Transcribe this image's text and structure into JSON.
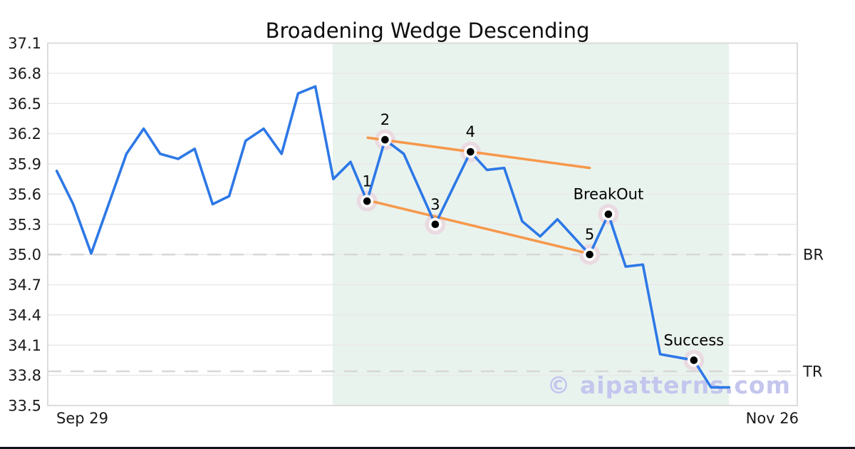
{
  "chart_data": {
    "type": "line",
    "title": "Broadening Wedge Descending",
    "x_ticks": [
      "Sep 29",
      "Nov 26"
    ],
    "y_ticks": [
      37.1,
      36.8,
      36.5,
      36.2,
      35.9,
      35.6,
      35.3,
      35.0,
      34.7,
      34.4,
      34.1,
      33.8,
      33.5
    ],
    "ylim": [
      33.5,
      37.1
    ],
    "grid": true,
    "watermark": "© aipatterns.com",
    "colors": {
      "price_line": "#2d78e6",
      "trendline": "#f6984b",
      "pattern_zone": "#e9f3ee",
      "marker_halo": "#eadae1",
      "marker_dot": "#000000",
      "marker_ring": "#ffffff",
      "gridline": "#e9e9e9",
      "plot_border": "#dcdcdc",
      "dashed_level": "#d7d7d7",
      "watermark_color": "#c4c6ee"
    },
    "pattern_zone": {
      "x0": 0.38,
      "x1": 0.909
    },
    "hlines": [
      {
        "y": 35.0,
        "label": "BR"
      },
      {
        "y": 33.84,
        "label": "TR"
      }
    ],
    "trendlines": [
      {
        "name": "upper-trendline",
        "x1": 0.427,
        "y1": 36.16,
        "x2": 0.723,
        "y2": 35.86
      },
      {
        "name": "lower-trendline",
        "x1": 0.426,
        "y1": 35.54,
        "x2": 0.716,
        "y2": 35.02
      }
    ],
    "price_line": {
      "points": [
        [
          0.012,
          35.83
        ],
        [
          0.034,
          35.5
        ],
        [
          0.058,
          35.01
        ],
        [
          0.105,
          36.0
        ],
        [
          0.128,
          36.25
        ],
        [
          0.15,
          36.0
        ],
        [
          0.174,
          35.95
        ],
        [
          0.196,
          36.05
        ],
        [
          0.22,
          35.5
        ],
        [
          0.242,
          35.58
        ],
        [
          0.264,
          36.13
        ],
        [
          0.288,
          36.25
        ],
        [
          0.312,
          36.0
        ],
        [
          0.334,
          36.6
        ],
        [
          0.357,
          36.67
        ],
        [
          0.381,
          35.75
        ],
        [
          0.404,
          35.92
        ],
        [
          0.426,
          35.53
        ],
        [
          0.45,
          36.14
        ],
        [
          0.475,
          36.0
        ],
        [
          0.517,
          35.3
        ],
        [
          0.564,
          36.02
        ],
        [
          0.586,
          35.84
        ],
        [
          0.609,
          35.86
        ],
        [
          0.633,
          35.33
        ],
        [
          0.657,
          35.18
        ],
        [
          0.68,
          35.35
        ],
        [
          0.723,
          35.0
        ],
        [
          0.748,
          35.4
        ],
        [
          0.771,
          34.88
        ],
        [
          0.794,
          34.9
        ],
        [
          0.817,
          34.01
        ],
        [
          0.862,
          33.95
        ],
        [
          0.885,
          33.68
        ],
        [
          0.909,
          33.68
        ]
      ]
    },
    "markers": [
      {
        "x": 0.426,
        "y": 35.53,
        "label": "1"
      },
      {
        "x": 0.45,
        "y": 36.14,
        "label": "2"
      },
      {
        "x": 0.517,
        "y": 35.3,
        "label": "3"
      },
      {
        "x": 0.564,
        "y": 36.02,
        "label": "4"
      },
      {
        "x": 0.723,
        "y": 35.0,
        "label": "5"
      },
      {
        "x": 0.748,
        "y": 35.4,
        "label": "BreakOut"
      },
      {
        "x": 0.862,
        "y": 33.95,
        "label": "Success"
      }
    ]
  }
}
